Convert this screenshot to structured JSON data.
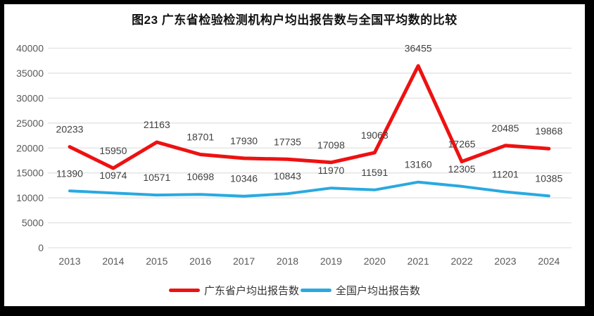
{
  "chart_data": {
    "type": "line",
    "title": "图23  广东省检验检测机构户均出报告数与全国平均数的比较",
    "categories": [
      "2013",
      "2014",
      "2015",
      "2016",
      "2017",
      "2018",
      "2019",
      "2020",
      "2021",
      "2022",
      "2023",
      "2024"
    ],
    "series": [
      {
        "name": "广东省户均出报告数",
        "color": "#ee1111",
        "line_width": 5,
        "values": [
          20233,
          15950,
          21163,
          18701,
          17930,
          17735,
          17098,
          19063,
          36455,
          17265,
          20485,
          19868
        ]
      },
      {
        "name": "全国户均出报告数",
        "color": "#29a9e0",
        "line_width": 4,
        "values": [
          11390,
          10974,
          10571,
          10698,
          10346,
          10843,
          11970,
          11591,
          13160,
          12305,
          11201,
          10385
        ]
      }
    ],
    "ylim": [
      0,
      40000
    ],
    "ytick_step": 5000,
    "ytick_labels": [
      "0",
      "5000",
      "10000",
      "15000",
      "20000",
      "25000",
      "30000",
      "35000",
      "40000"
    ],
    "grid": "horizontal",
    "data_labels": "above-points",
    "legend_position": "bottom",
    "label_color": "#3f3f3f",
    "axis_color": "#595959",
    "gridline_color": "#e2e2e2",
    "background_color": "#ffffff",
    "frame_color": "#000000"
  }
}
